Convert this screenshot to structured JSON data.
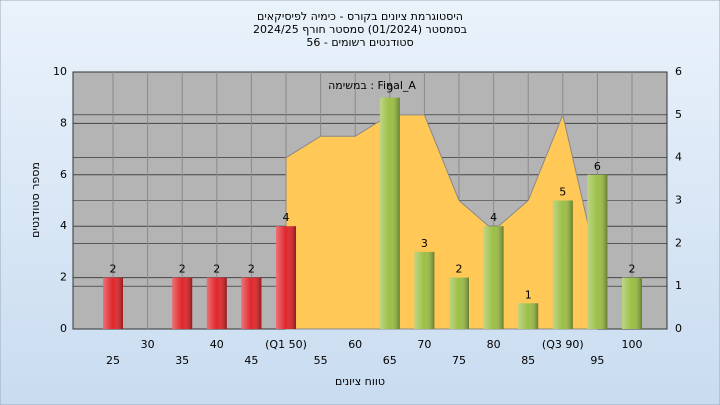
{
  "chart_data": {
    "type": "bar",
    "title": "היסטוגרמת ציונים בקורס - כימיה לפיסיקאים",
    "subtitle": [
      "בסמסטר  (01/2024)  סמסטר חורף 2024/25",
      "סטודנטים רשומים - 56"
    ],
    "annotation": "במשימה : Final_A",
    "xlabel": "טווח ציונים",
    "ylabel": "מספר סטודנטים",
    "categories": [
      "25",
      "30",
      "35",
      "40",
      "45",
      "(Q1 50)",
      "55",
      "60",
      "65",
      "70",
      "75",
      "80",
      "85",
      "(Q3 90)",
      "95",
      "100"
    ],
    "values": [
      2,
      null,
      2,
      2,
      2,
      4,
      null,
      null,
      9,
      3,
      2,
      4,
      1,
      5,
      6,
      2
    ],
    "colors": [
      "#e0262b",
      null,
      "#e0262b",
      "#e0262b",
      "#e0262b",
      "#e0262b",
      null,
      null,
      "#9bbf45",
      "#9bbf45",
      "#9bbf45",
      "#9bbf45",
      "#9bbf45",
      "#9bbf45",
      "#9bbf45",
      "#9bbf45"
    ],
    "ylim": [
      0,
      10
    ],
    "yticks": [
      0,
      2,
      4,
      6,
      8,
      10
    ],
    "y2lim": [
      0,
      6
    ],
    "y2ticks": [
      0,
      1,
      2,
      3,
      4,
      5,
      6
    ],
    "area": {
      "axis": "y2",
      "color": "#ffc857",
      "values": [
        null,
        null,
        null,
        null,
        null,
        4,
        4.5,
        4.5,
        5,
        5,
        3,
        2.3,
        3,
        5,
        1.5,
        null
      ]
    },
    "grid": true
  }
}
